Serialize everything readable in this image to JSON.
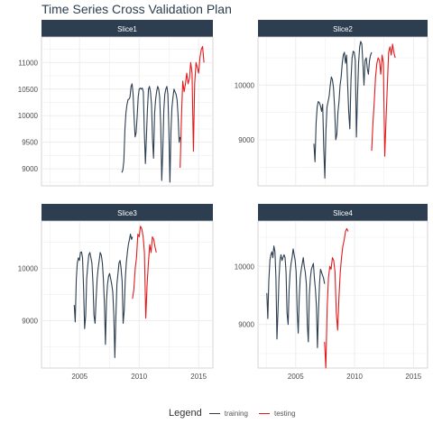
{
  "title": "Time Series Cross Validation Plan",
  "legend": {
    "title": "Legend",
    "items": [
      {
        "label": "training",
        "color": "#2c3e50"
      },
      {
        "label": "testing",
        "color": "#e31a1c"
      }
    ]
  },
  "colors": {
    "strip": "#2c3e50",
    "strip_text": "#ffffff",
    "grid": "#ebebeb",
    "panel_border": "#cccccc",
    "tick_text": "#4d4d4d"
  },
  "chart_data": {
    "type": "line",
    "facet_scales": "free_y, shared x",
    "xlim": [
      2001.8,
      2016.2
    ],
    "x_ticks": [
      2005,
      2010,
      2015
    ],
    "panels": [
      {
        "strip": "Slice1",
        "ylim": [
          8680,
          11480
        ],
        "y_ticks": [
          9000,
          9500,
          10000,
          10500,
          11000
        ],
        "training": {
          "start": 2008.55,
          "end": 2013.45,
          "values": [
            8930,
            8980,
            9150,
            9750,
            10050,
            10200,
            10300,
            10310,
            10350,
            10550,
            10600,
            10420,
            9950,
            9600,
            9680,
            10000,
            10350,
            10500,
            10520,
            10500,
            10520,
            10450,
            9700,
            9100,
            9600,
            10100,
            10500,
            10550,
            10450,
            10200,
            9550,
            9200,
            10050,
            10300,
            10450,
            10550,
            10500,
            10350,
            9800,
            8780,
            9300,
            10100,
            10400,
            10500,
            10550,
            10400,
            9750,
            8750,
            9700,
            10150,
            10350,
            10500,
            10450,
            10400,
            10300,
            10000,
            9500,
            9600
          ]
        },
        "testing": {
          "start": 2013.45,
          "end": 2015.45,
          "values": [
            9020,
            10000,
            10650,
            10450,
            10600,
            10800,
            10600,
            10700,
            11000,
            10800,
            9330,
            10600,
            11000,
            10900,
            10800,
            11100,
            11250,
            11300,
            11000
          ]
        }
      },
      {
        "strip": "Slice2",
        "ylim": [
          8160,
          10880
        ],
        "y_ticks": [
          9000,
          10000
        ],
        "training": {
          "start": 2006.55,
          "end": 2011.45,
          "values": [
            8930,
            8600,
            9300,
            9600,
            9700,
            9680,
            9620,
            9520,
            9650,
            8850,
            8300,
            9150,
            9600,
            9700,
            9800,
            10000,
            10150,
            10100,
            9950,
            9600,
            9000,
            9100,
            9500,
            9700,
            10000,
            10150,
            10400,
            10550,
            10600,
            10400,
            10550,
            10000,
            9500,
            9200,
            10100,
            10500,
            10620,
            10600,
            10450,
            9050,
            9800,
            10400,
            10700,
            10800,
            10750,
            10400,
            10000,
            10450,
            10500,
            10300,
            10200,
            10450,
            10550,
            10600
          ]
        },
        "testing": {
          "start": 2011.45,
          "end": 2013.45,
          "values": [
            8800,
            9300,
            9700,
            10150,
            10400,
            10500,
            10450,
            10200,
            10550,
            10400,
            8700,
            9350,
            10000,
            10600,
            10700,
            10550,
            10750,
            10600,
            10500
          ]
        }
      },
      {
        "strip": "Slice3",
        "ylim": [
          8100,
          10900
        ],
        "y_ticks": [
          9000,
          10000
        ],
        "training": {
          "start": 2004.55,
          "end": 2009.45,
          "values": [
            9300,
            8980,
            9800,
            10100,
            10200,
            10150,
            10300,
            10310,
            10200,
            9600,
            8850,
            9100,
            9800,
            10050,
            10250,
            10300,
            10200,
            10100,
            9700,
            9100,
            8950,
            9400,
            9800,
            10000,
            10150,
            10300,
            10250,
            10100,
            9800,
            9300,
            8550,
            9400,
            9700,
            9850,
            9900,
            9800,
            9700,
            9550,
            9100,
            8300,
            9100,
            9700,
            9900,
            10100,
            10150,
            10000,
            9750,
            8950,
            9200,
            9800,
            10100,
            10300,
            10450,
            10550,
            10650,
            10550,
            10600
          ]
        },
        "testing": {
          "start": 2009.45,
          "end": 2011.45,
          "values": [
            9420,
            9600,
            10000,
            10200,
            10650,
            10600,
            10800,
            10750,
            10600,
            10300,
            9050,
            9700,
            10100,
            10450,
            10300,
            10600,
            10550,
            10400,
            10300
          ]
        }
      },
      {
        "strip": "Slice4",
        "ylim": [
          8250,
          10780
        ],
        "y_ticks": [
          9000,
          10000
        ],
        "training": {
          "start": 2002.55,
          "end": 2007.45,
          "values": [
            9540,
            9100,
            9750,
            10100,
            10200,
            10250,
            10150,
            10350,
            10250,
            9800,
            8750,
            9200,
            9800,
            10100,
            10200,
            10100,
            10150,
            10200,
            10150,
            9900,
            9200,
            9000,
            9600,
            9900,
            10050,
            10150,
            10300,
            10200,
            10100,
            9900,
            9200,
            8850,
            9450,
            9800,
            9950,
            10050,
            10150,
            10000,
            9900,
            9700,
            9000,
            8700,
            9500,
            9800,
            9950,
            10000,
            10050,
            9800,
            9600,
            9300,
            8600,
            9200,
            9700,
            9950,
            9900,
            9850,
            9800,
            9700
          ]
        },
        "testing": {
          "start": 2007.45,
          "end": 2009.45,
          "values": [
            8700,
            8250,
            9300,
            9800,
            10000,
            9950,
            10150,
            10100,
            9900,
            9200,
            8900,
            9450,
            9900,
            10150,
            10350,
            10450,
            10600,
            10650,
            10600
          ]
        }
      }
    ]
  }
}
